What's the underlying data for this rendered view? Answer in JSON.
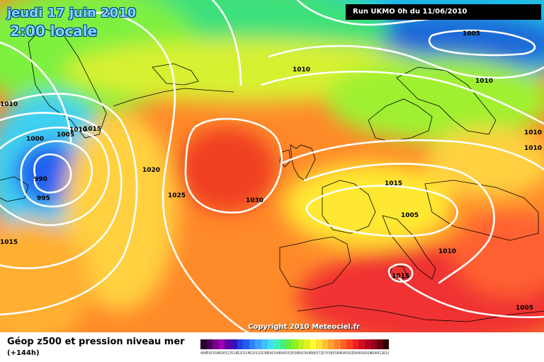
{
  "title": {
    "date": "jeudi 17 juin 2010",
    "time": "2:00 locale"
  },
  "run_info": "Run UKMO 0h du 11/06/2010",
  "copyright": "Copyright 2010 Meteociel.fr",
  "legend": {
    "title": "Géop z500 et pression niveau mer",
    "subtitle": "(+144h)",
    "scale_values": [
      "496",
      "500",
      "504",
      "508",
      "512",
      "516",
      "520",
      "524",
      "528",
      "532",
      "536",
      "540",
      "544",
      "548",
      "552",
      "556",
      "560",
      "564",
      "568",
      "572",
      "576",
      "580",
      "584",
      "588",
      "592",
      "596",
      "600",
      "604",
      "608",
      "612",
      "616"
    ],
    "scale_colors": [
      "#2a0030",
      "#4a0055",
      "#7a0090",
      "#a000b0",
      "#5a00a0",
      "#3a10c0",
      "#2040e0",
      "#2060f0",
      "#3080ff",
      "#40a0ff",
      "#40c0ff",
      "#40e0f0",
      "#40f0c0",
      "#40f080",
      "#60f040",
      "#90f020",
      "#c0f020",
      "#e0f020",
      "#ffff30",
      "#ffe030",
      "#ffc030",
      "#ffa030",
      "#ff8030",
      "#ff6020",
      "#ff4020",
      "#f02020",
      "#d01020",
      "#b00020",
      "#900020",
      "#600010",
      "#300000"
    ]
  },
  "isobars": [
    {
      "label": "1005",
      "color": "#000000"
    },
    {
      "label": "1010",
      "color": "#000000"
    },
    {
      "label": "1010",
      "color": "#000000"
    },
    {
      "label": "1015",
      "color": "#000000"
    },
    {
      "label": "1020",
      "color": "#000000"
    },
    {
      "label": "1025",
      "color": "#000000"
    },
    {
      "label": "1030",
      "color": "#000000"
    },
    {
      "label": "1015",
      "color": "#000000"
    },
    {
      "label": "1005",
      "color": "#000000"
    },
    {
      "label": "1010",
      "color": "#000000"
    },
    {
      "label": "1015",
      "color": "#000000"
    },
    {
      "label": "1005",
      "color": "#000000"
    },
    {
      "label": "990",
      "color": "#000000"
    },
    {
      "label": "995",
      "color": "#000000"
    },
    {
      "label": "1000",
      "color": "#000000"
    },
    {
      "label": "1005",
      "color": "#000000"
    },
    {
      "label": "1010",
      "color": "#000000"
    },
    {
      "label": "1015",
      "color": "#000000"
    },
    {
      "label": "1010",
      "color": "#000000"
    },
    {
      "label": "1010",
      "color": "#000000"
    },
    {
      "label": "1010",
      "color": "#000000"
    }
  ],
  "colors": {
    "contour_line": "#ffffff",
    "coastline": "#000000"
  }
}
